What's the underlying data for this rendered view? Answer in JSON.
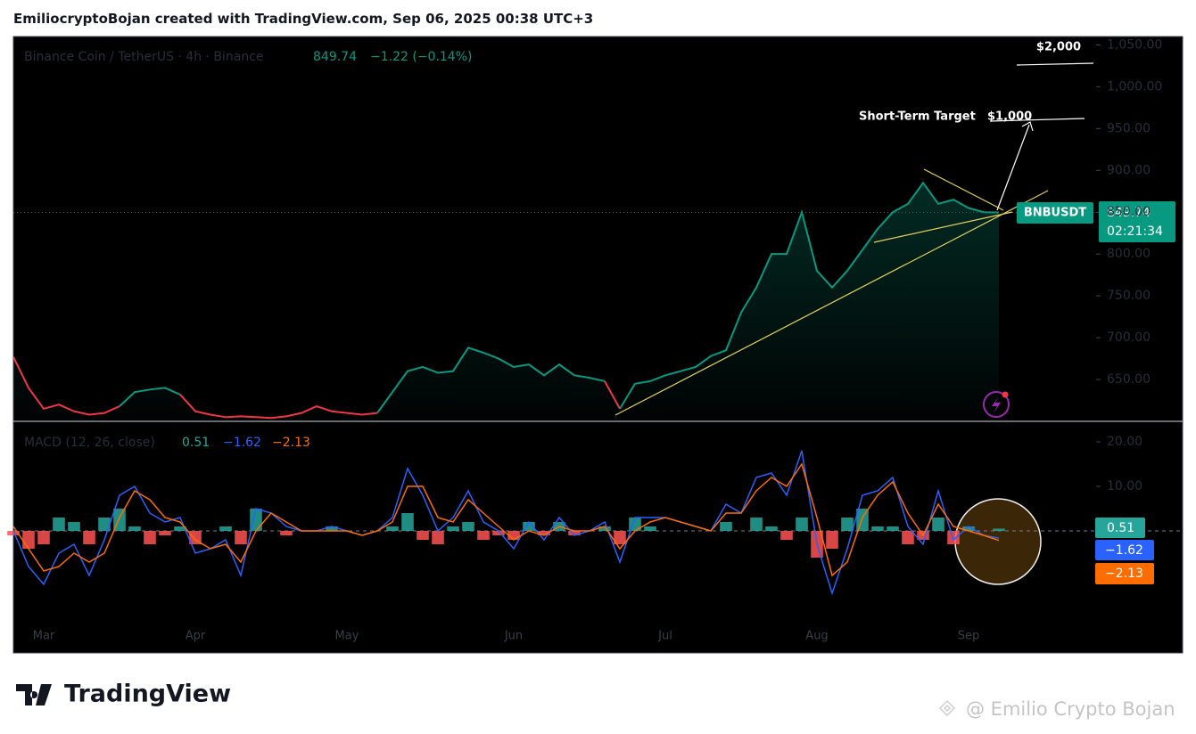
{
  "header": {
    "text": "EmiliocryptoBojan created with TradingView.com, Sep 06, 2025 00:38 UTC+3"
  },
  "chart_data": [
    {
      "type": "line",
      "title": "Binance Coin / TetherUS · 4h · Binance",
      "price_label": "849.74",
      "change_label": "−1.22 (−0.14%)",
      "symbol_label": "BNBUSDT",
      "countdown_label": "02:21:34",
      "annotations": [
        "$2,000",
        "Short-Term Target",
        "$1,000"
      ],
      "categories": [
        null,
        null,
        "Mar",
        null,
        null,
        null,
        null,
        null,
        null,
        null,
        null,
        null,
        "Apr",
        null,
        null,
        null,
        null,
        null,
        null,
        null,
        null,
        null,
        "May",
        null,
        null,
        null,
        null,
        null,
        null,
        null,
        null,
        null,
        null,
        "Jun",
        null,
        null,
        null,
        null,
        null,
        null,
        null,
        null,
        null,
        "Jul",
        null,
        null,
        null,
        null,
        null,
        null,
        null,
        null,
        null,
        "Aug",
        null,
        null,
        null,
        null,
        null,
        null,
        null,
        null,
        null,
        "Sep",
        null,
        null
      ],
      "series": [
        {
          "name": "BNBUSDT",
          "color": "#089981",
          "values": [
            677,
            640,
            615,
            620,
            612,
            608,
            610,
            618,
            635,
            638,
            640,
            632,
            612,
            608,
            605,
            606,
            605,
            604,
            606,
            610,
            618,
            612,
            610,
            608,
            610,
            635,
            660,
            665,
            658,
            660,
            688,
            682,
            675,
            665,
            668,
            655,
            668,
            655,
            652,
            648,
            615,
            645,
            648,
            655,
            660,
            665,
            678,
            685,
            730,
            760,
            800,
            800,
            850,
            780,
            760,
            780,
            805,
            830,
            850,
            860,
            885,
            860,
            865,
            855,
            850,
            849.74
          ],
          "colors": [
            "#089981",
            "#f23645",
            "#f23645",
            "#f23645",
            "#f23645",
            "#f23645",
            "#f23645",
            "#f23645",
            "#089981",
            "#089981",
            "#089981",
            "#089981",
            "#f23645",
            "#f23645",
            "#f23645",
            "#f23645",
            "#f23645",
            "#f23645",
            "#f23645",
            "#f23645",
            "#f23645",
            "#f23645",
            "#f23645",
            "#f23645",
            "#f23645",
            "#089981",
            "#089981",
            "#089981",
            "#089981",
            "#089981",
            "#089981",
            "#089981",
            "#089981",
            "#089981",
            "#089981",
            "#089981",
            "#089981",
            "#089981",
            "#089981",
            "#089981",
            "#f23645",
            "#089981",
            "#089981",
            "#089981",
            "#089981",
            "#089981",
            "#089981",
            "#089981",
            "#089981",
            "#089981",
            "#089981",
            "#089981",
            "#089981",
            "#089981",
            "#089981",
            "#089981",
            "#089981",
            "#089981",
            "#089981",
            "#089981",
            "#089981",
            "#089981",
            "#089981",
            "#089981",
            "#089981",
            "#089981"
          ]
        }
      ],
      "ylim": [
        600,
        1060
      ],
      "yticks": [
        {
          "value": 650,
          "label": "650.00"
        },
        {
          "value": 700,
          "label": "700.00"
        },
        {
          "value": 750,
          "label": "750.00"
        },
        {
          "value": 800,
          "label": "800.00"
        },
        {
          "value": 850,
          "label": "850.00"
        },
        {
          "value": 900,
          "label": "900.00"
        },
        {
          "value": 950,
          "label": "950.00"
        },
        {
          "value": 1000,
          "label": "1,000.00"
        },
        {
          "value": 1050,
          "label": "1,050.00"
        }
      ]
    },
    {
      "type": "macd",
      "title": "MACD (12, 26, close)",
      "value_labels": [
        "0.51",
        "−1.62",
        "−2.13"
      ],
      "up_color": "#26a69a",
      "down_color": "#ff5252",
      "series": [
        {
          "name": "Histogram",
          "color": "#26a69a",
          "values": [
            -1,
            -4,
            -3,
            3,
            2,
            -3,
            3,
            5,
            1,
            -3,
            -1,
            1,
            -3,
            0,
            1,
            -3,
            5,
            0,
            -1,
            0,
            0,
            1,
            0,
            0,
            0,
            1,
            4,
            -2,
            -3,
            1,
            2,
            -2,
            -1,
            -2,
            2,
            -1,
            2,
            -1,
            0,
            1,
            -3,
            3,
            1,
            0,
            0,
            0,
            0,
            2,
            0,
            3,
            1,
            -2,
            3,
            -6,
            -4,
            3,
            5,
            1,
            1,
            -3,
            -2,
            3,
            -3,
            1,
            0,
            0.51
          ]
        },
        {
          "name": "MACD",
          "color": "#2962ff",
          "values": [
            0,
            -8,
            -12,
            -5,
            -3,
            -10,
            -2,
            8,
            10,
            4,
            2,
            3,
            -5,
            -4,
            -2,
            -10,
            5,
            4,
            1,
            0,
            0,
            1,
            0,
            -1,
            0,
            3,
            14,
            8,
            0,
            3,
            9,
            2,
            0,
            -4,
            2,
            -2,
            3,
            -1,
            0,
            2,
            -7,
            3,
            3,
            3,
            2,
            1,
            0,
            6,
            4,
            12,
            13,
            8,
            18,
            -3,
            -14,
            -4,
            8,
            9,
            12,
            1,
            -3,
            9,
            -2,
            1,
            -1,
            -1.62
          ]
        },
        {
          "name": "Signal",
          "color": "#ff6d00",
          "values": [
            1,
            -4,
            -9,
            -8,
            -5,
            -7,
            -5,
            3,
            9,
            7,
            3,
            2,
            -2,
            -4,
            -3,
            -7,
            0,
            4,
            2,
            0,
            0,
            0,
            0,
            -1,
            0,
            2,
            10,
            10,
            3,
            2,
            7,
            4,
            1,
            -2,
            0,
            -1,
            1,
            0,
            0,
            1,
            -4,
            0,
            2,
            3,
            2,
            1,
            0,
            4,
            4,
            9,
            12,
            10,
            15,
            3,
            -10,
            -7,
            3,
            8,
            11,
            4,
            -1,
            6,
            1,
            0,
            -1,
            -2.13
          ]
        }
      ],
      "ylim": [
        -27.4,
        24.6
      ],
      "yticks": [
        {
          "value": 10,
          "label": "10.00"
        },
        {
          "value": 20,
          "label": "20.00"
        }
      ]
    }
  ],
  "footer": {
    "logo": "TradingView",
    "watermark": "@ Emilio Crypto Bojan"
  }
}
